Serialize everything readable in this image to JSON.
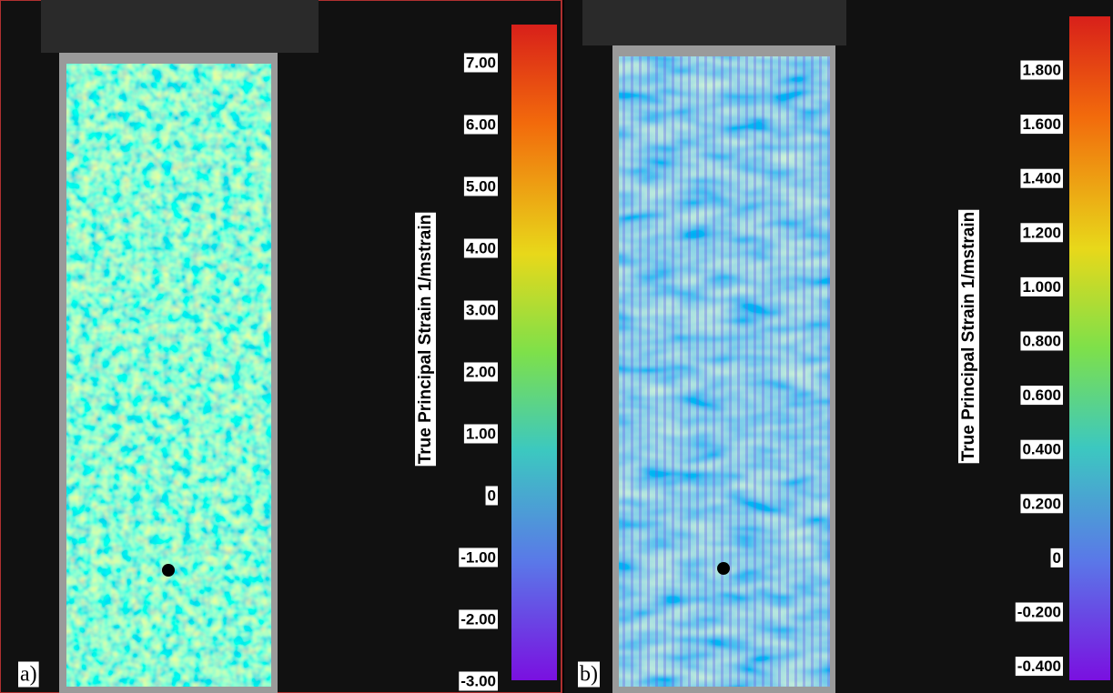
{
  "panels": [
    {
      "label": "a)",
      "colorbar": {
        "title": "True Principal Strain 1/mstrain",
        "ticks": [
          "7.00",
          "6.00",
          "5.00",
          "4.00",
          "3.00",
          "2.00",
          "1.00",
          "0",
          "-1.00",
          "-2.00",
          "-3.00"
        ]
      }
    },
    {
      "label": "b)",
      "colorbar": {
        "title": "True Principal Strain 1/mstrain",
        "ticks": [
          "1.800",
          "1.600",
          "1.400",
          "1.200",
          "1.000",
          "0.800",
          "0.600",
          "0.400",
          "0.200",
          "0",
          "-0.200",
          "-0.400"
        ]
      }
    }
  ]
}
